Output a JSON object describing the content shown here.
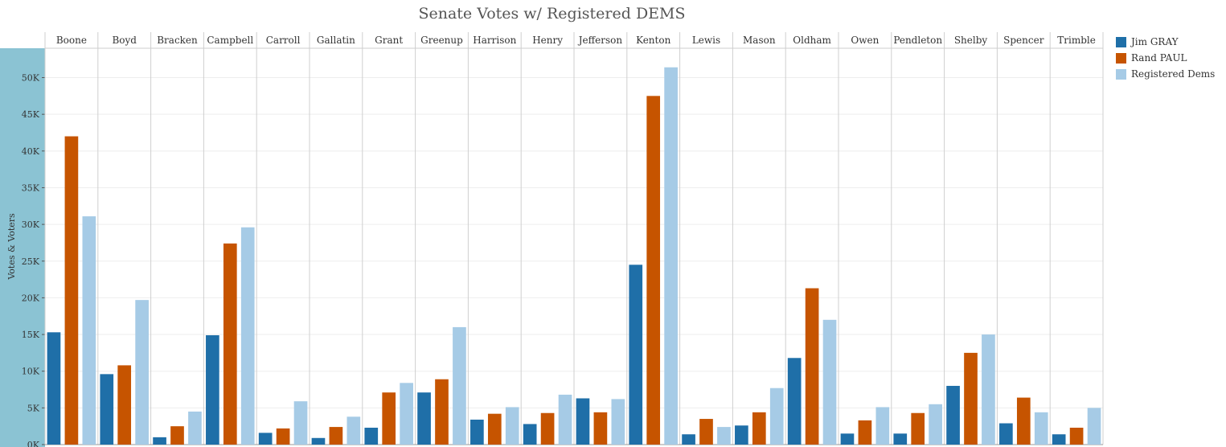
{
  "chart_data": {
    "type": "bar",
    "title": "Senate Votes w/ Registered DEMS",
    "ylabel": "Votes & Voters",
    "ylim": [
      0,
      54000
    ],
    "yticks": [
      0,
      5000,
      10000,
      15000,
      20000,
      25000,
      30000,
      35000,
      40000,
      45000,
      50000
    ],
    "ytick_labels": [
      "0K",
      "5K",
      "10K",
      "15K",
      "20K",
      "25K",
      "30K",
      "35K",
      "40K",
      "45K",
      "50K"
    ],
    "grid": true,
    "legend_position": "right",
    "categories": [
      "Boone",
      "Boyd",
      "Bracken",
      "Campbell",
      "Carroll",
      "Gallatin",
      "Grant",
      "Greenup",
      "Harrison",
      "Henry",
      "Jefferson",
      "Kenton",
      "Lewis",
      "Mason",
      "Oldham",
      "Owen",
      "Pendleton",
      "Shelby",
      "Spencer",
      "Trimble"
    ],
    "series": [
      {
        "name": "Jim GRAY",
        "color": "#1f6fa8",
        "values": [
          15300,
          9600,
          1000,
          14900,
          1600,
          900,
          2300,
          7100,
          3400,
          2800,
          6300,
          24500,
          1400,
          2600,
          11800,
          1500,
          1500,
          8000,
          2900,
          1400
        ]
      },
      {
        "name": "Rand PAUL",
        "color": "#c65400",
        "values": [
          42000,
          10800,
          2500,
          27400,
          2200,
          2400,
          7100,
          8900,
          4200,
          4300,
          4400,
          47500,
          3500,
          4400,
          21300,
          3300,
          4300,
          12500,
          6400,
          2300
        ]
      },
      {
        "name": "Registered Dems",
        "color": "#a6cbe6",
        "values": [
          31100,
          19700,
          4500,
          29600,
          5900,
          3800,
          8400,
          16000,
          5100,
          6800,
          6200,
          51400,
          2400,
          7700,
          17000,
          5100,
          5500,
          15000,
          4400,
          5000
        ]
      }
    ]
  }
}
